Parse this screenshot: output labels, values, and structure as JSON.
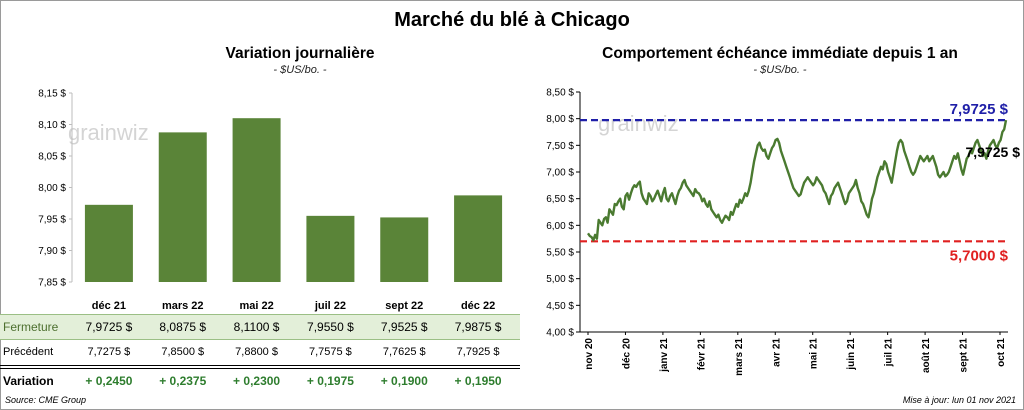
{
  "title": "Marché du blé à Chicago",
  "footer": {
    "source": "Source: CME Group",
    "updated": "Mise à jour: lun 01 nov 2021"
  },
  "watermark": "grainwiz",
  "colors": {
    "bar": "#5a8438",
    "line": "#4a7a30",
    "high": "#1f1fa8",
    "low": "#e02020"
  },
  "chart_data": [
    {
      "type": "bar",
      "title": "Variation journalière",
      "subtitle": "- $US/bo. -",
      "categories": [
        "déc 21",
        "mars 22",
        "mai 22",
        "juil 22",
        "sept 22",
        "déc 22"
      ],
      "values": [
        7.9725,
        8.0875,
        8.11,
        7.955,
        7.9525,
        7.9875
      ],
      "ylim": [
        7.85,
        8.15
      ],
      "yticks": [
        "8,15 $",
        "8,10 $",
        "8,05 $",
        "8,00 $",
        "7,95 $",
        "7,90 $",
        "7,85 $"
      ],
      "table": {
        "rows": [
          {
            "label": "Fermeture",
            "values": [
              "7,9725  $",
              "8,0875  $",
              "8,1100  $",
              "7,9550  $",
              "7,9525  $",
              "7,9875  $"
            ]
          },
          {
            "label": "Précédent",
            "values": [
              "7,7275  $",
              "7,8500  $",
              "7,8800  $",
              "7,7575  $",
              "7,7625  $",
              "7,7925  $"
            ]
          },
          {
            "label": "Variation",
            "values": [
              "+ 0,2450",
              "+ 0,2375",
              "+ 0,2300",
              "+ 0,1975",
              "+ 0,1900",
              "+ 0,1950"
            ]
          }
        ]
      }
    },
    {
      "type": "line",
      "title": "Comportement  échéance immédiate depuis 1 an",
      "subtitle": "- $US/bo. -",
      "ylim": [
        4.0,
        8.5
      ],
      "yticks": [
        "8,50 $",
        "8,00 $",
        "7,50 $",
        "7,00 $",
        "6,50 $",
        "6,00 $",
        "5,50 $",
        "5,00 $",
        "4,50 $",
        "4,00 $"
      ],
      "xticks": [
        "nov 20",
        "déc 20",
        "janv 21",
        "févr 21",
        "mars 21",
        "avr 21",
        "mai 21",
        "juin 21",
        "juil 21",
        "août 21",
        "sept 21",
        "oct 21"
      ],
      "high": {
        "value": 7.9725,
        "label": "7,9725  $"
      },
      "low": {
        "value": 5.7,
        "label": "5,7000  $"
      },
      "last_label": "7,9725 $",
      "series": [
        {
          "values": [
            5.85,
            5.8,
            5.78,
            5.72,
            5.82,
            5.75,
            6.1,
            6.05,
            6.0,
            6.12,
            6.15,
            6.05,
            6.3,
            6.25,
            6.2,
            6.4,
            6.38,
            6.45,
            6.5,
            6.35,
            6.3,
            6.55,
            6.6,
            6.48,
            6.6,
            6.7,
            6.75,
            6.72,
            6.78,
            6.82,
            6.6,
            6.5,
            6.45,
            6.4,
            6.6,
            6.55,
            6.45,
            6.5,
            6.58,
            6.65,
            6.55,
            6.45,
            6.6,
            6.7,
            6.5,
            6.45,
            6.55,
            6.6,
            6.5,
            6.4,
            6.55,
            6.65,
            6.7,
            6.8,
            6.85,
            6.75,
            6.7,
            6.65,
            6.6,
            6.55,
            6.68,
            6.62,
            6.6,
            6.55,
            6.45,
            6.5,
            6.4,
            6.35,
            6.45,
            6.3,
            6.25,
            6.2,
            6.15,
            6.2,
            6.1,
            6.05,
            6.12,
            6.18,
            6.15,
            6.1,
            6.25,
            6.2,
            6.3,
            6.4,
            6.35,
            6.48,
            6.42,
            6.5,
            6.6,
            6.55,
            6.65,
            6.8,
            7.0,
            7.2,
            7.35,
            7.5,
            7.55,
            7.45,
            7.4,
            7.42,
            7.3,
            7.25,
            7.35,
            7.45,
            7.5,
            7.6,
            7.62,
            7.55,
            7.4,
            7.3,
            7.2,
            7.1,
            7.0,
            6.9,
            6.8,
            6.7,
            6.65,
            6.6,
            6.55,
            6.58,
            6.7,
            6.8,
            6.85,
            6.9,
            6.85,
            6.8,
            6.75,
            6.8,
            6.9,
            6.85,
            6.8,
            6.75,
            6.65,
            6.6,
            6.5,
            6.4,
            6.55,
            6.6,
            6.7,
            6.75,
            6.8,
            6.7,
            6.6,
            6.5,
            6.4,
            6.45,
            6.6,
            6.65,
            6.7,
            6.75,
            6.85,
            6.7,
            6.6,
            6.45,
            6.4,
            6.3,
            6.2,
            6.15,
            6.3,
            6.5,
            6.6,
            6.75,
            6.9,
            7.0,
            7.1,
            7.05,
            7.2,
            7.15,
            7.0,
            6.9,
            6.8,
            7.0,
            7.2,
            7.4,
            7.55,
            7.6,
            7.55,
            7.4,
            7.3,
            7.2,
            7.1,
            7.0,
            6.95,
            7.0,
            7.1,
            7.2,
            7.3,
            7.25,
            7.2,
            7.25,
            7.3,
            7.2,
            7.25,
            7.3,
            7.2,
            7.1,
            6.95,
            6.9,
            6.95,
            7.0,
            6.92,
            6.95,
            7.0,
            7.1,
            7.2,
            7.3,
            7.25,
            7.35,
            7.2,
            7.05,
            6.95,
            7.1,
            7.25,
            7.3,
            7.4,
            7.35,
            7.45,
            7.55,
            7.6,
            7.5,
            7.4,
            7.3,
            7.35,
            7.25,
            7.4,
            7.5,
            7.55,
            7.6,
            7.5,
            7.45,
            7.55,
            7.6,
            7.75,
            7.8,
            7.9725
          ]
        }
      ]
    }
  ]
}
